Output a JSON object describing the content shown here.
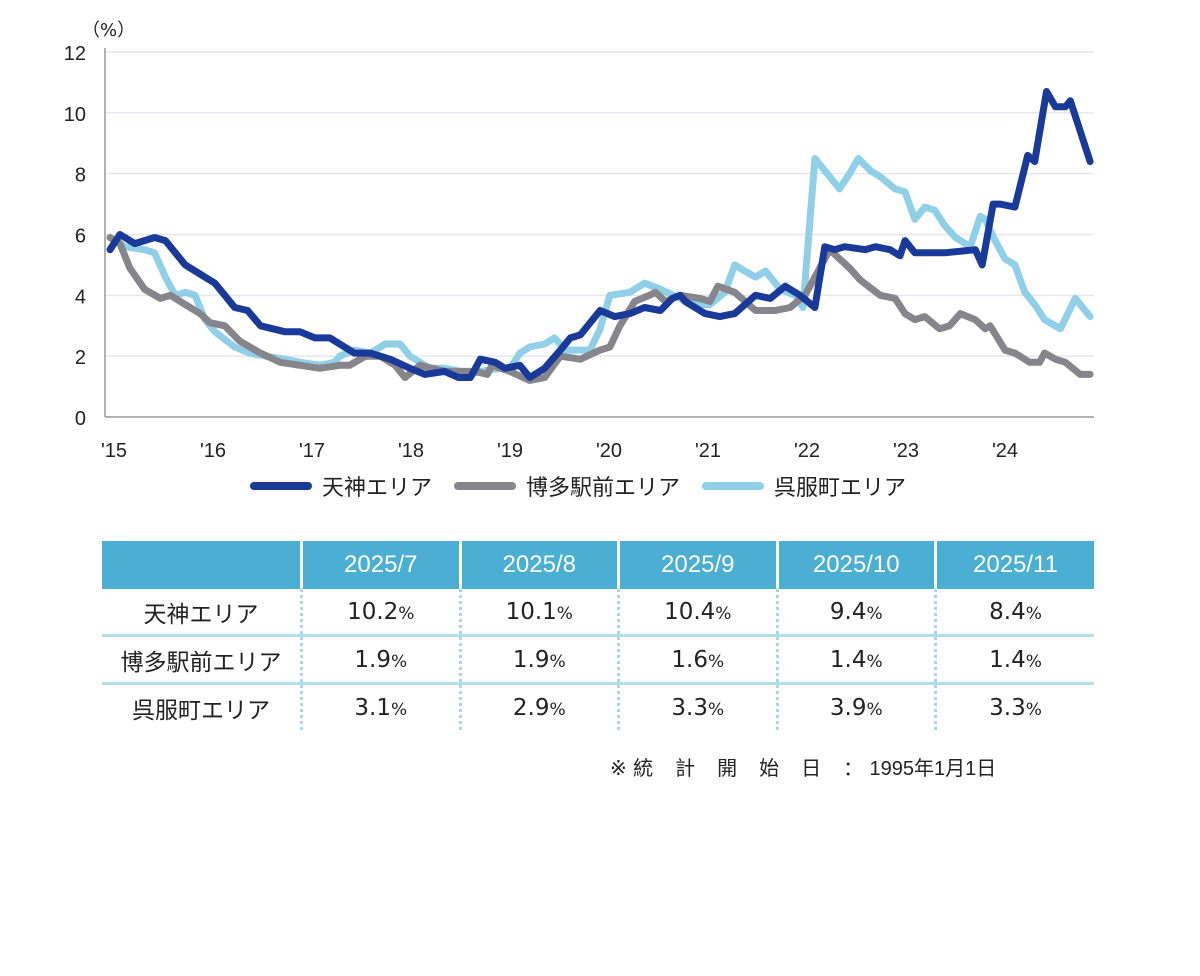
{
  "chart_data": {
    "type": "line",
    "ylabel": "（%）",
    "ylim": [
      0,
      12
    ],
    "yticks": [
      0,
      2,
      4,
      6,
      8,
      10,
      12
    ],
    "xlim": [
      2015,
      2025
    ],
    "xticks": [
      {
        "value": 2015,
        "label": "'15"
      },
      {
        "value": 2016,
        "label": "'16"
      },
      {
        "value": 2017,
        "label": "'17"
      },
      {
        "value": 2018,
        "label": "'18"
      },
      {
        "value": 2019,
        "label": "'19"
      },
      {
        "value": 2020,
        "label": "'20"
      },
      {
        "value": 2021,
        "label": "'21"
      },
      {
        "value": 2022,
        "label": "'22"
      },
      {
        "value": 2023,
        "label": "'23"
      },
      {
        "value": 2024,
        "label": "'24"
      }
    ],
    "grid": true,
    "legend_position": "bottom",
    "series": [
      {
        "name": "天神エリア",
        "color": "#1a3a99",
        "points": [
          [
            2015.0,
            5.5
          ],
          [
            2015.1,
            6.0
          ],
          [
            2015.25,
            5.7
          ],
          [
            2015.45,
            5.9
          ],
          [
            2015.56,
            5.8
          ],
          [
            2015.76,
            5.0
          ],
          [
            2015.96,
            4.6
          ],
          [
            2016.06,
            4.4
          ],
          [
            2016.26,
            3.6
          ],
          [
            2016.39,
            3.5
          ],
          [
            2016.52,
            3.0
          ],
          [
            2016.77,
            2.8
          ],
          [
            2016.92,
            2.8
          ],
          [
            2017.07,
            2.6
          ],
          [
            2017.22,
            2.6
          ],
          [
            2017.47,
            2.1
          ],
          [
            2017.63,
            2.1
          ],
          [
            2017.83,
            1.9
          ],
          [
            2018.03,
            1.6
          ],
          [
            2018.18,
            1.4
          ],
          [
            2018.38,
            1.5
          ],
          [
            2018.52,
            1.3
          ],
          [
            2018.64,
            1.3
          ],
          [
            2018.74,
            1.9
          ],
          [
            2018.89,
            1.8
          ],
          [
            2018.99,
            1.6
          ],
          [
            2019.14,
            1.7
          ],
          [
            2019.24,
            1.3
          ],
          [
            2019.39,
            1.6
          ],
          [
            2019.55,
            2.2
          ],
          [
            2019.65,
            2.6
          ],
          [
            2019.75,
            2.7
          ],
          [
            2019.95,
            3.5
          ],
          [
            2020.1,
            3.3
          ],
          [
            2020.25,
            3.4
          ],
          [
            2020.4,
            3.6
          ],
          [
            2020.56,
            3.5
          ],
          [
            2020.68,
            3.9
          ],
          [
            2020.76,
            4.0
          ],
          [
            2020.81,
            3.8
          ],
          [
            2021.01,
            3.4
          ],
          [
            2021.16,
            3.3
          ],
          [
            2021.31,
            3.4
          ],
          [
            2021.52,
            4.0
          ],
          [
            2021.67,
            3.9
          ],
          [
            2021.82,
            4.3
          ],
          [
            2021.97,
            4.0
          ],
          [
            2022.12,
            3.6
          ],
          [
            2022.22,
            5.6
          ],
          [
            2022.32,
            5.5
          ],
          [
            2022.42,
            5.6
          ],
          [
            2022.63,
            5.5
          ],
          [
            2022.73,
            5.6
          ],
          [
            2022.88,
            5.5
          ],
          [
            2022.98,
            5.3
          ],
          [
            2023.03,
            5.8
          ],
          [
            2023.13,
            5.4
          ],
          [
            2023.43,
            5.4
          ],
          [
            2023.74,
            5.5
          ],
          [
            2023.81,
            5.0
          ],
          [
            2023.92,
            7.0
          ],
          [
            2023.99,
            7.0
          ],
          [
            2024.14,
            6.9
          ],
          [
            2024.27,
            8.6
          ],
          [
            2024.34,
            8.4
          ],
          [
            2024.46,
            10.7
          ],
          [
            2024.55,
            10.2
          ],
          [
            2024.65,
            10.2
          ],
          [
            2024.7,
            10.4
          ],
          [
            2024.8,
            9.4
          ],
          [
            2024.9,
            8.4
          ]
        ]
      },
      {
        "name": "博多駅前エリア",
        "color": "#85858b",
        "points": [
          [
            2015.0,
            5.9
          ],
          [
            2015.1,
            5.7
          ],
          [
            2015.2,
            4.9
          ],
          [
            2015.35,
            4.2
          ],
          [
            2015.51,
            3.9
          ],
          [
            2015.61,
            4.0
          ],
          [
            2015.76,
            3.7
          ],
          [
            2015.91,
            3.4
          ],
          [
            2016.01,
            3.1
          ],
          [
            2016.16,
            3.0
          ],
          [
            2016.31,
            2.5
          ],
          [
            2016.52,
            2.1
          ],
          [
            2016.72,
            1.8
          ],
          [
            2016.92,
            1.7
          ],
          [
            2017.12,
            1.6
          ],
          [
            2017.32,
            1.7
          ],
          [
            2017.42,
            1.7
          ],
          [
            2017.58,
            2.0
          ],
          [
            2017.73,
            2.0
          ],
          [
            2017.88,
            1.7
          ],
          [
            2017.98,
            1.3
          ],
          [
            2018.13,
            1.7
          ],
          [
            2018.38,
            1.5
          ],
          [
            2018.54,
            1.5
          ],
          [
            2018.69,
            1.5
          ],
          [
            2018.81,
            1.4
          ],
          [
            2018.86,
            1.7
          ],
          [
            2019.04,
            1.5
          ],
          [
            2019.24,
            1.2
          ],
          [
            2019.39,
            1.3
          ],
          [
            2019.55,
            2.0
          ],
          [
            2019.75,
            1.9
          ],
          [
            2019.95,
            2.2
          ],
          [
            2020.05,
            2.3
          ],
          [
            2020.15,
            3.0
          ],
          [
            2020.3,
            3.8
          ],
          [
            2020.45,
            4.0
          ],
          [
            2020.51,
            4.1
          ],
          [
            2020.61,
            3.8
          ],
          [
            2020.76,
            4.0
          ],
          [
            2020.96,
            3.9
          ],
          [
            2021.06,
            3.8
          ],
          [
            2021.14,
            4.3
          ],
          [
            2021.31,
            4.1
          ],
          [
            2021.52,
            3.5
          ],
          [
            2021.72,
            3.5
          ],
          [
            2021.87,
            3.6
          ],
          [
            2022.02,
            4.0
          ],
          [
            2022.12,
            4.6
          ],
          [
            2022.27,
            5.5
          ],
          [
            2022.47,
            4.9
          ],
          [
            2022.58,
            4.5
          ],
          [
            2022.78,
            4.0
          ],
          [
            2022.93,
            3.9
          ],
          [
            2023.03,
            3.4
          ],
          [
            2023.13,
            3.2
          ],
          [
            2023.23,
            3.3
          ],
          [
            2023.38,
            2.9
          ],
          [
            2023.48,
            3.0
          ],
          [
            2023.59,
            3.4
          ],
          [
            2023.74,
            3.2
          ],
          [
            2023.84,
            2.9
          ],
          [
            2023.89,
            3.0
          ],
          [
            2024.04,
            2.2
          ],
          [
            2024.14,
            2.1
          ],
          [
            2024.29,
            1.8
          ],
          [
            2024.39,
            1.8
          ],
          [
            2024.44,
            2.1
          ],
          [
            2024.55,
            1.9
          ],
          [
            2024.65,
            1.8
          ],
          [
            2024.8,
            1.4
          ],
          [
            2024.9,
            1.4
          ]
        ]
      },
      {
        "name": "呉服町エリア",
        "color": "#8fd0e8",
        "points": [
          [
            2015.0,
            5.9
          ],
          [
            2015.15,
            5.6
          ],
          [
            2015.35,
            5.5
          ],
          [
            2015.45,
            5.4
          ],
          [
            2015.56,
            4.6
          ],
          [
            2015.66,
            4.0
          ],
          [
            2015.76,
            4.1
          ],
          [
            2015.86,
            4.0
          ],
          [
            2015.96,
            3.2
          ],
          [
            2016.06,
            2.8
          ],
          [
            2016.26,
            2.3
          ],
          [
            2016.41,
            2.1
          ],
          [
            2016.57,
            2.0
          ],
          [
            2016.77,
            1.9
          ],
          [
            2016.92,
            1.8
          ],
          [
            2017.12,
            1.7
          ],
          [
            2017.27,
            1.8
          ],
          [
            2017.32,
            2.0
          ],
          [
            2017.47,
            2.2
          ],
          [
            2017.63,
            2.1
          ],
          [
            2017.78,
            2.4
          ],
          [
            2017.93,
            2.4
          ],
          [
            2018.03,
            2.0
          ],
          [
            2018.23,
            1.6
          ],
          [
            2018.38,
            1.6
          ],
          [
            2018.54,
            1.5
          ],
          [
            2018.64,
            1.4
          ],
          [
            2018.74,
            1.5
          ],
          [
            2018.94,
            1.6
          ],
          [
            2019.04,
            1.6
          ],
          [
            2019.14,
            2.1
          ],
          [
            2019.24,
            2.3
          ],
          [
            2019.39,
            2.4
          ],
          [
            2019.49,
            2.6
          ],
          [
            2019.6,
            2.2
          ],
          [
            2019.85,
            2.2
          ],
          [
            2019.95,
            2.9
          ],
          [
            2020.05,
            4.0
          ],
          [
            2020.25,
            4.1
          ],
          [
            2020.4,
            4.4
          ],
          [
            2020.56,
            4.2
          ],
          [
            2020.76,
            3.9
          ],
          [
            2020.86,
            3.7
          ],
          [
            2021.06,
            3.7
          ],
          [
            2021.21,
            4.1
          ],
          [
            2021.31,
            5.0
          ],
          [
            2021.41,
            4.8
          ],
          [
            2021.52,
            4.6
          ],
          [
            2021.62,
            4.8
          ],
          [
            2021.77,
            4.2
          ],
          [
            2021.92,
            4.0
          ],
          [
            2022.0,
            3.6
          ],
          [
            2022.12,
            8.5
          ],
          [
            2022.27,
            7.9
          ],
          [
            2022.37,
            7.5
          ],
          [
            2022.47,
            8.0
          ],
          [
            2022.56,
            8.5
          ],
          [
            2022.68,
            8.1
          ],
          [
            2022.78,
            7.9
          ],
          [
            2022.93,
            7.5
          ],
          [
            2023.03,
            7.4
          ],
          [
            2023.13,
            6.5
          ],
          [
            2023.23,
            6.9
          ],
          [
            2023.33,
            6.8
          ],
          [
            2023.43,
            6.3
          ],
          [
            2023.54,
            5.9
          ],
          [
            2023.69,
            5.6
          ],
          [
            2023.79,
            6.6
          ],
          [
            2023.84,
            6.5
          ],
          [
            2023.94,
            5.8
          ],
          [
            2024.04,
            5.2
          ],
          [
            2024.14,
            5.0
          ],
          [
            2024.24,
            4.1
          ],
          [
            2024.34,
            3.7
          ],
          [
            2024.44,
            3.2
          ],
          [
            2024.6,
            2.9
          ],
          [
            2024.75,
            3.9
          ],
          [
            2024.9,
            3.3
          ]
        ]
      }
    ]
  },
  "table": {
    "headers": [
      "",
      "2025/7",
      "2025/8",
      "2025/9",
      "2025/10",
      "2025/11"
    ],
    "rows": [
      {
        "label": "天神エリア",
        "cells": [
          {
            "v": "10.2",
            "u": "%"
          },
          {
            "v": "10.1",
            "u": "%"
          },
          {
            "v": "10.4",
            "u": "%"
          },
          {
            "v": "9.4",
            "u": "%"
          },
          {
            "v": "8.4",
            "u": "%"
          }
        ]
      },
      {
        "label": "博多駅前エリア",
        "cells": [
          {
            "v": "1.9",
            "u": "%"
          },
          {
            "v": "1.9",
            "u": "%"
          },
          {
            "v": "1.6",
            "u": "%"
          },
          {
            "v": "1.4",
            "u": "%"
          },
          {
            "v": "1.4",
            "u": "%"
          }
        ]
      },
      {
        "label": "呉服町エリア",
        "cells": [
          {
            "v": "3.1",
            "u": "%"
          },
          {
            "v": "2.9",
            "u": "%"
          },
          {
            "v": "3.3",
            "u": "%"
          },
          {
            "v": "3.9",
            "u": "%"
          },
          {
            "v": "3.3",
            "u": "%"
          }
        ]
      }
    ],
    "header_color": "#4baed3"
  },
  "note": {
    "prefix": "※",
    "label": "統計開始日",
    "sep": "：",
    "value": "1995年1月1日"
  }
}
